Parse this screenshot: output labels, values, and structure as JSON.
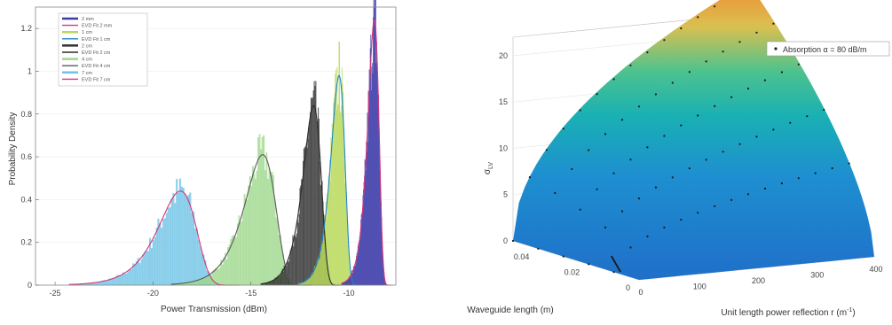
{
  "chart_data": [
    {
      "type": "area",
      "title": "",
      "xlabel": "Power Transmission (dBm)",
      "ylabel": "Probability Density",
      "xlim": [
        -26,
        -7.6
      ],
      "ylim": [
        0,
        1.3
      ],
      "xticks": [
        "-25",
        "-20",
        "-15",
        "-10"
      ],
      "xtick_values": [
        -25,
        -20,
        -15,
        -10
      ],
      "yticks": [
        "0",
        "0.2",
        "0.4",
        "0.6",
        "0.8",
        "1",
        "1.2"
      ],
      "ytick_values": [
        0,
        0.2,
        0.4,
        0.6,
        0.8,
        1,
        1.2
      ],
      "legend_position": "top-left",
      "legend": [
        "2 mm",
        "EVD Fit 2 mm",
        "1 cm",
        "EVD Fit 1 cm",
        "2 cm",
        "EVD Fit 2 cm",
        "4 cm",
        "EVD Fit 4 cm",
        "7 cm",
        "EVD Fit 7 cm"
      ],
      "series": [
        {
          "name": "7 cm",
          "color": "#6ec3e6",
          "fit_color": "#d6357a",
          "mode": -18.6,
          "peak": 0.44,
          "width": 0.95
        },
        {
          "name": "4 cm",
          "color": "#9ed88c",
          "fit_color": "#5a5a5a",
          "mode": -14.4,
          "peak": 0.61,
          "width": 0.78
        },
        {
          "name": "2 cm",
          "color": "#333333",
          "fit_color": "#2b2b2b",
          "mode": -11.8,
          "peak": 0.84,
          "width": 0.45
        },
        {
          "name": "1 cm",
          "color": "#b8d95a",
          "fit_color": "#1f86c8",
          "mode": -10.5,
          "peak": 0.98,
          "width": 0.35
        },
        {
          "name": "2 mm",
          "color": "#3b3aa8",
          "fit_color": "#d6357a",
          "mode": -8.7,
          "peak": 1.24,
          "width": 0.28
        }
      ]
    },
    {
      "type": "scatter",
      "title": "",
      "xlabel": "Unit length power reflection r (m⁻¹)",
      "ylabel": "σLV",
      "zlabel_main": "σ",
      "zlabel_sub": "LV",
      "xlabel_main": "Unit length power reflection r (m",
      "xlabel_sup": "-1",
      "xlabel_end": ")",
      "y2label": "Waveguide length (m)",
      "xticks": [
        "0",
        "100",
        "200",
        "300",
        "400"
      ],
      "y2ticks": [
        "0.04",
        "0.02",
        "0"
      ],
      "zticks": [
        "0",
        "5",
        "10",
        "15",
        "20"
      ],
      "zlim": [
        0,
        22
      ],
      "legend_position": "top-right",
      "legend": [
        "Absorption α = 80 dB/m"
      ],
      "surface_colormap": [
        "#1f6fc9",
        "#1aa3c8",
        "#3bc19a",
        "#e9c14a",
        "#f28a30"
      ]
    }
  ]
}
